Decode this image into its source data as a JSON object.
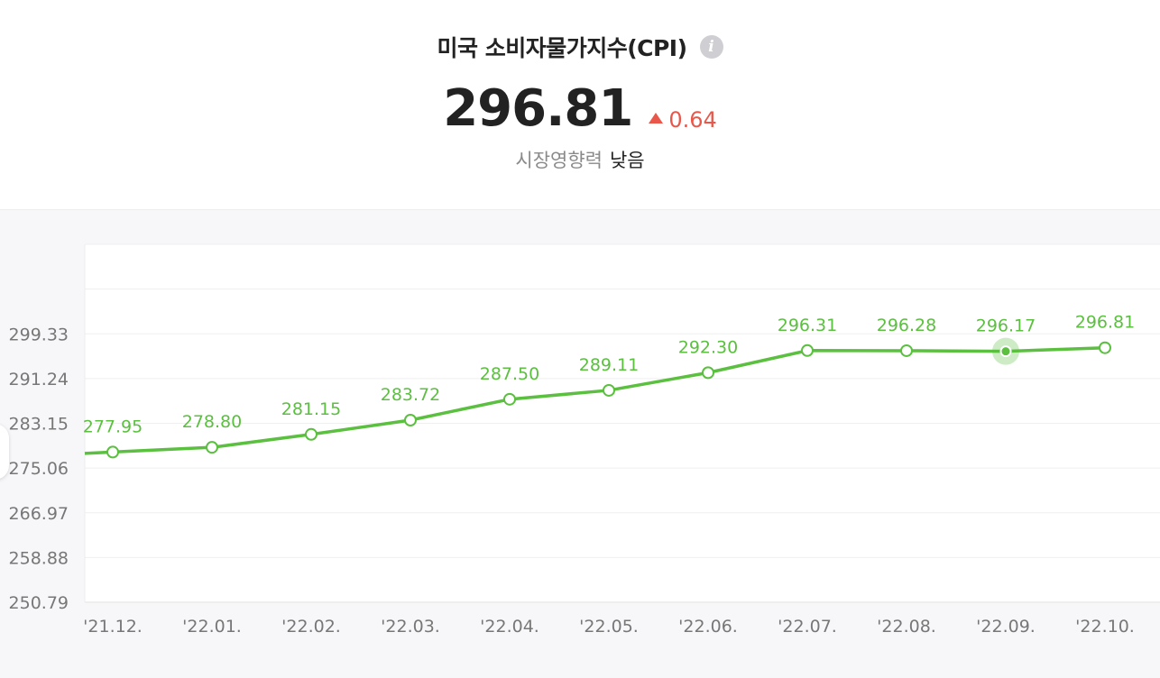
{
  "header": {
    "title": "미국 소비자물가지수(CPI)",
    "value": "296.81",
    "change": "0.64",
    "change_direction": "up",
    "impact_label": "시장영향력",
    "impact_value": "낮음"
  },
  "icons": {
    "info": "info-icon",
    "change_arrow": "triangle-up-icon"
  },
  "colors": {
    "line": "#5bbf3f",
    "up": "#e9574b",
    "text": "#222222"
  },
  "chart_data": {
    "type": "line",
    "categories": [
      "'21.12.",
      "'22.01.",
      "'22.02.",
      "'22.03.",
      "'22.04.",
      "'22.05.",
      "'22.06.",
      "'22.07.",
      "'22.08.",
      "'22.09.",
      "'22.10."
    ],
    "series": [
      {
        "values": [
          277.95,
          278.8,
          281.15,
          283.72,
          287.5,
          289.11,
          292.3,
          296.31,
          296.28,
          296.17,
          296.81
        ],
        "labels": [
          "277.95",
          "278.80",
          "281.15",
          "283.72",
          "287.50",
          "289.11",
          "292.30",
          "296.31",
          "296.28",
          "296.17",
          "296.81"
        ]
      }
    ],
    "y_ticks": [
      250.79,
      258.88,
      266.97,
      275.06,
      283.15,
      291.24,
      299.33
    ],
    "y_tick_labels": [
      "250.79",
      "258.88",
      "266.97",
      "275.06",
      "283.15",
      "291.24",
      "299.33"
    ],
    "ylim": [
      250.79,
      315.51
    ],
    "highlighted_index": 9,
    "grid": true,
    "xlabel": "",
    "ylabel": ""
  }
}
